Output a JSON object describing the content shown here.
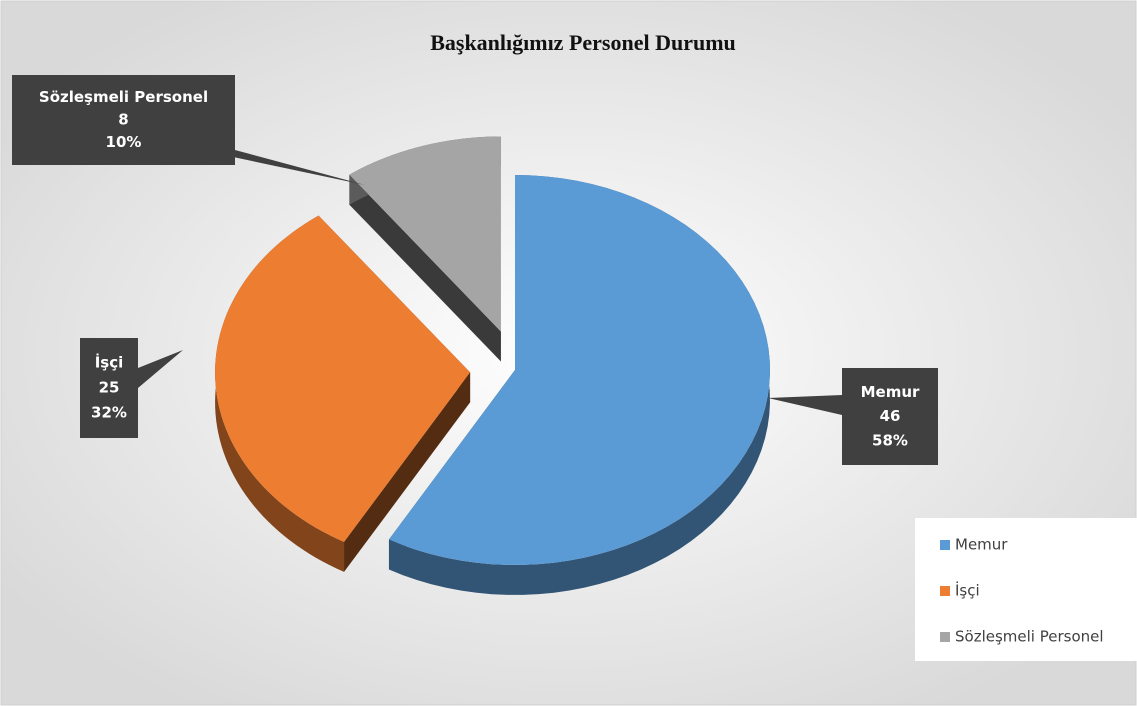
{
  "chart_data": {
    "type": "pie",
    "title": "Başkanlığımız Personel Durumu",
    "categories": [
      "Memur",
      "İşçi",
      "Sözleşmeli Personel"
    ],
    "values": [
      46,
      25,
      8
    ],
    "percentages": [
      58,
      32,
      10
    ],
    "percentage_labels": [
      "58%",
      "32%",
      "10%"
    ],
    "colors": [
      "#5b9bd5",
      "#ed7d31",
      "#a5a5a5"
    ],
    "legend": "right"
  }
}
